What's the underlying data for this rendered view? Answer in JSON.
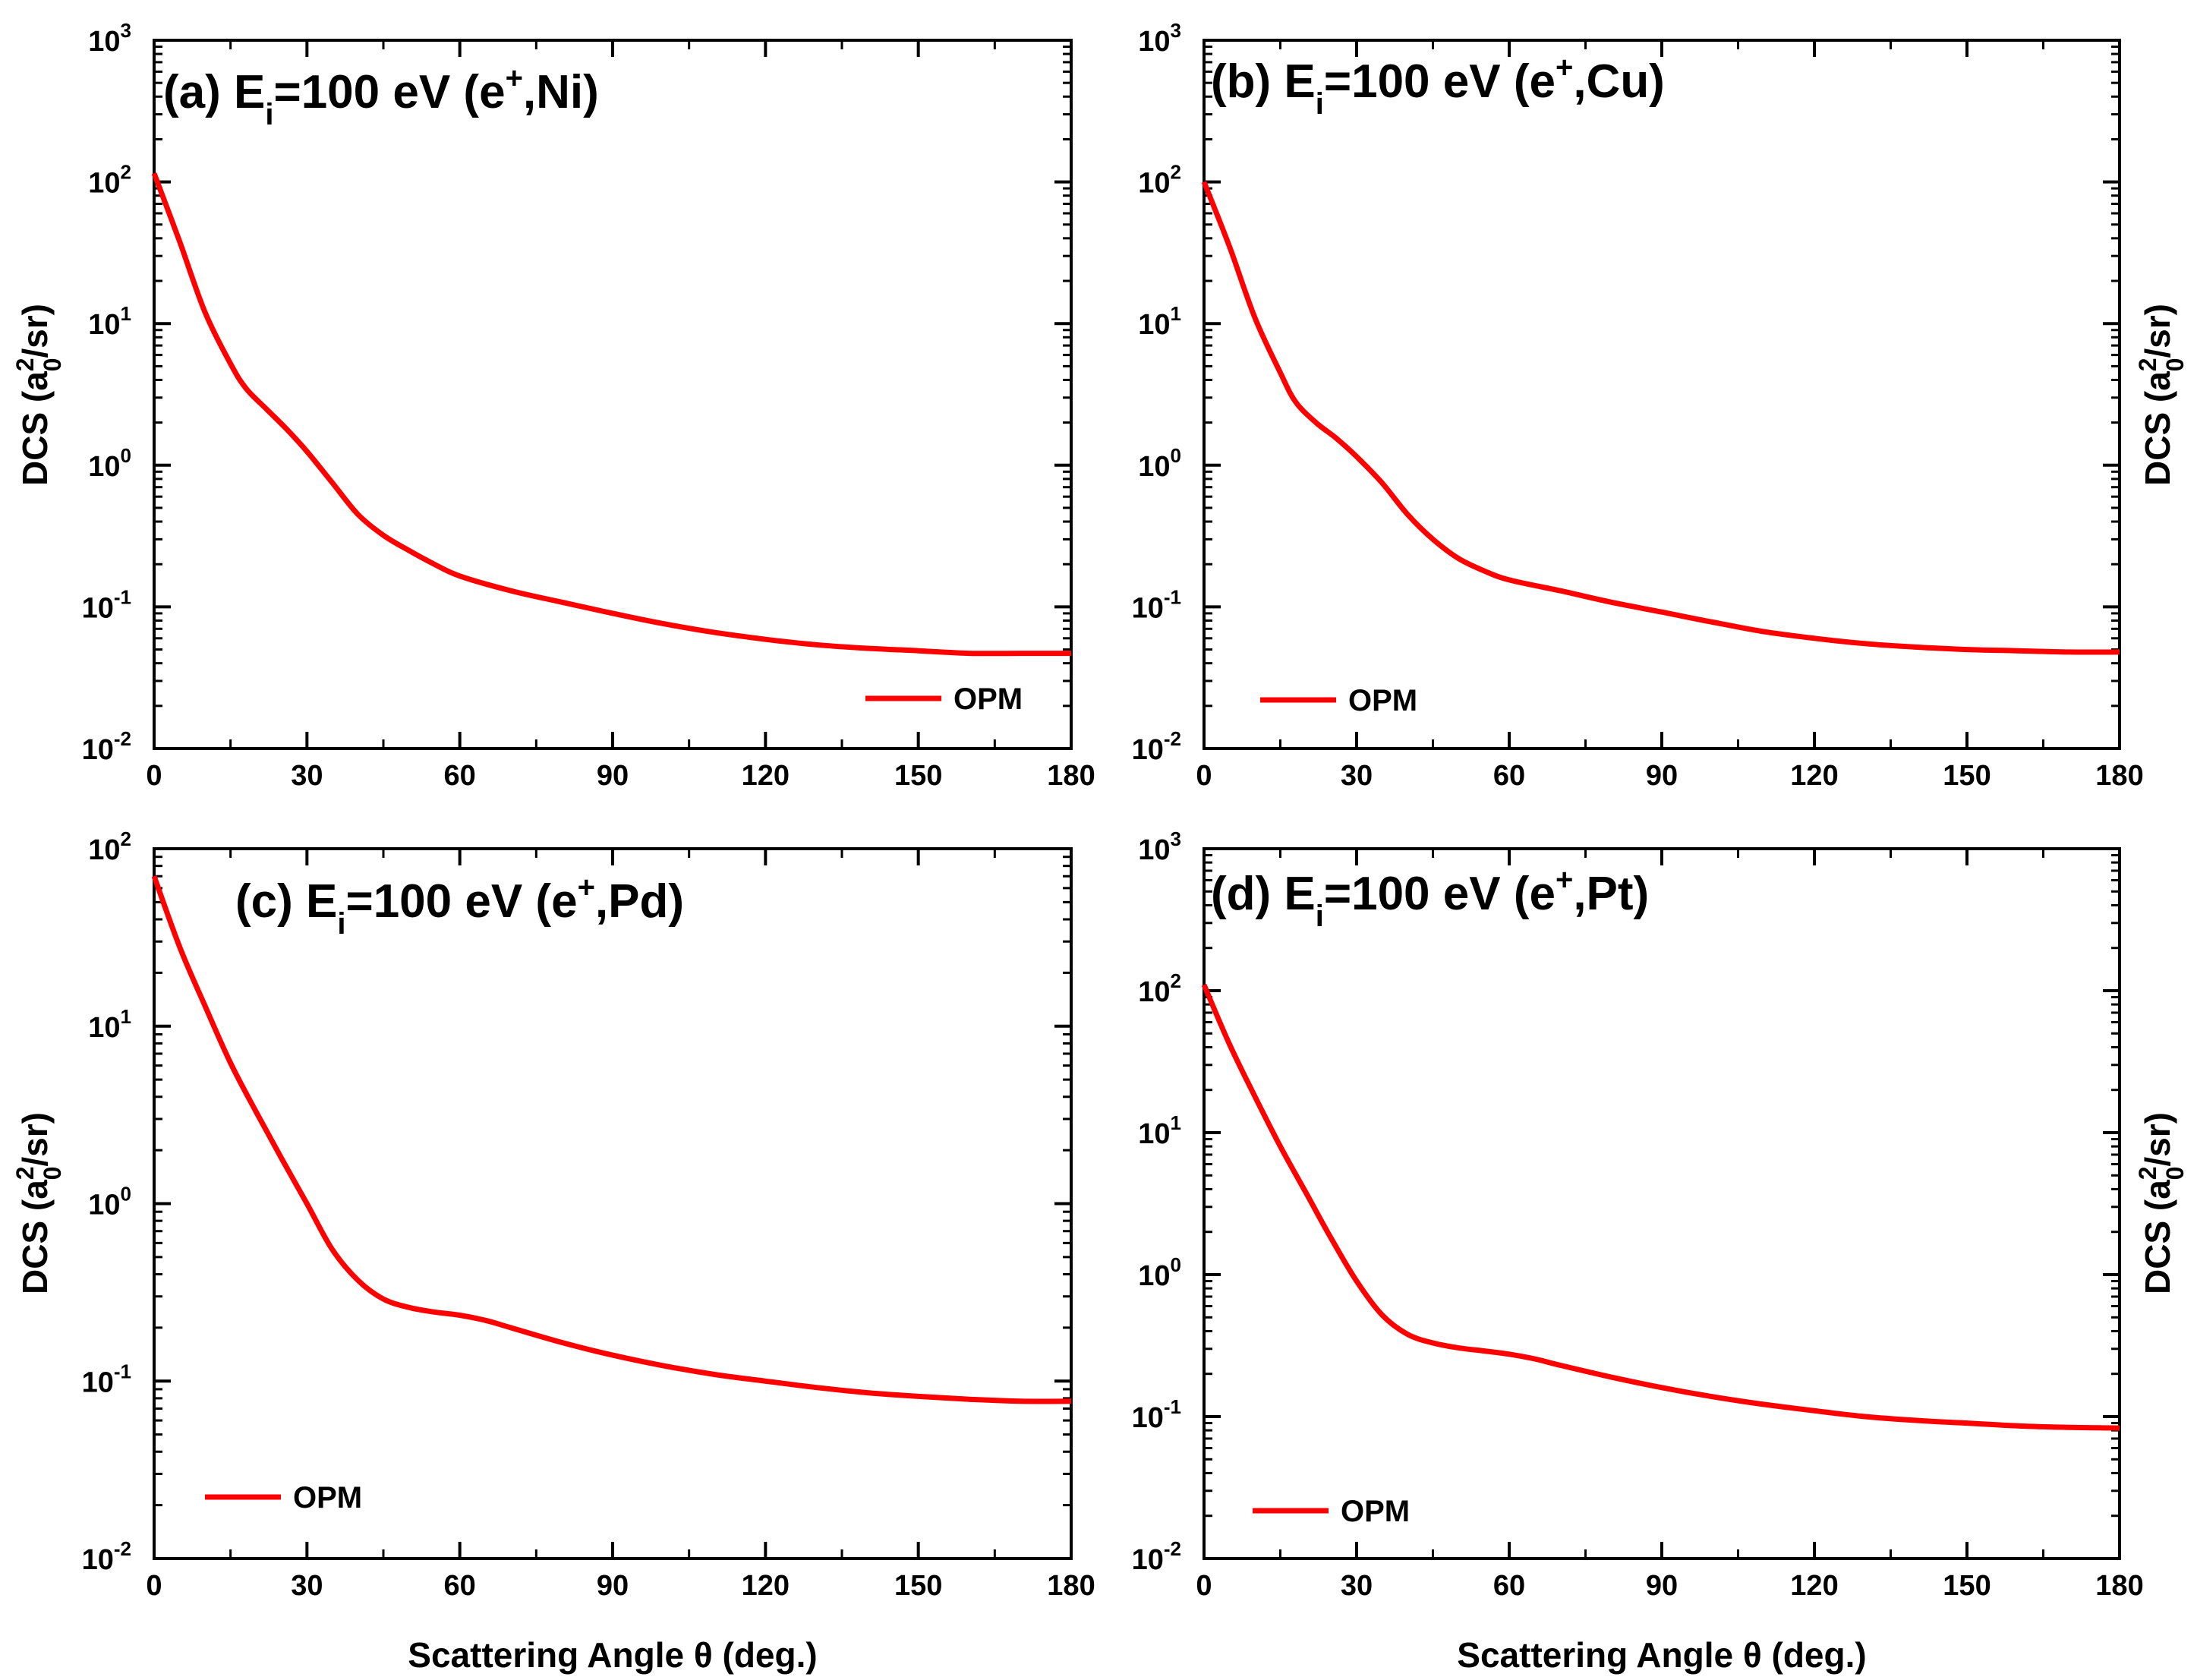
{
  "figure": {
    "x_axis_title": "Scattering Angle θ (deg.)",
    "y_axis_title": {
      "prefix": "DCS (a",
      "sup": "2",
      "sub": "0",
      "suffix": "/sr)"
    },
    "line_color": "#ff0000"
  },
  "chart_data": [
    {
      "type": "line",
      "panel": "a",
      "title": {
        "prefix": "(a) E",
        "sub": "i",
        "mid": "=100 eV (e",
        "sup": "+",
        "suffix": ",Ni)"
      },
      "xlabel": "",
      "ylabel": "DCS (a0^2/sr)",
      "yscale": "log",
      "xlim": [
        0,
        180
      ],
      "ylim_exp": [
        -2,
        3
      ],
      "x_ticks": [
        "0",
        "30",
        "60",
        "90",
        "120",
        "150",
        "180"
      ],
      "y_ticks": [
        {
          "base": "10",
          "exp": "-2"
        },
        {
          "base": "10",
          "exp": "-1"
        },
        {
          "base": "10",
          "exp": "0"
        },
        {
          "base": "10",
          "exp": "1"
        },
        {
          "base": "10",
          "exp": "2"
        },
        {
          "base": "10",
          "exp": "3"
        }
      ],
      "legend": {
        "label": "OPM",
        "position": "bottom-right"
      },
      "series": [
        {
          "name": "OPM",
          "x": [
            0,
            5,
            10,
            15,
            18,
            22,
            26,
            30,
            35,
            40,
            45,
            50,
            55,
            60,
            70,
            80,
            90,
            100,
            110,
            120,
            130,
            140,
            150,
            160,
            170,
            180
          ],
          "y": [
            115,
            38,
            12,
            5.2,
            3.5,
            2.5,
            1.8,
            1.25,
            0.75,
            0.45,
            0.32,
            0.25,
            0.2,
            0.165,
            0.13,
            0.108,
            0.09,
            0.076,
            0.066,
            0.059,
            0.054,
            0.051,
            0.049,
            0.047,
            0.047,
            0.047
          ]
        }
      ]
    },
    {
      "type": "line",
      "panel": "b",
      "title": {
        "prefix": "(b) E",
        "sub": "i",
        "mid": "=100 eV (e",
        "sup": "+",
        "suffix": ",Cu)"
      },
      "xlabel": "",
      "ylabel": "DCS (a0^2/sr)",
      "yscale": "log",
      "xlim": [
        0,
        180
      ],
      "ylim_exp": [
        -2,
        3
      ],
      "x_ticks": [
        "0",
        "30",
        "60",
        "90",
        "120",
        "150",
        "180"
      ],
      "y_ticks": [
        {
          "base": "10",
          "exp": "-2"
        },
        {
          "base": "10",
          "exp": "-1"
        },
        {
          "base": "10",
          "exp": "0"
        },
        {
          "base": "10",
          "exp": "1"
        },
        {
          "base": "10",
          "exp": "2"
        },
        {
          "base": "10",
          "exp": "3"
        }
      ],
      "legend": {
        "label": "OPM",
        "position": "bottom-left"
      },
      "series": [
        {
          "name": "OPM",
          "x": [
            0,
            5,
            10,
            15,
            18,
            22,
            26,
            30,
            35,
            40,
            45,
            50,
            55,
            60,
            70,
            80,
            90,
            100,
            110,
            120,
            130,
            140,
            150,
            160,
            170,
            180
          ],
          "y": [
            100,
            35,
            11,
            4.5,
            2.8,
            2.0,
            1.55,
            1.15,
            0.75,
            0.45,
            0.3,
            0.22,
            0.18,
            0.155,
            0.13,
            0.108,
            0.092,
            0.078,
            0.067,
            0.06,
            0.055,
            0.052,
            0.05,
            0.049,
            0.048,
            0.048
          ]
        }
      ]
    },
    {
      "type": "line",
      "panel": "c",
      "title": {
        "prefix": "(c) E",
        "sub": "i",
        "mid": "=100 eV (e",
        "sup": "+",
        "suffix": ",Pd)"
      },
      "xlabel": "Scattering Angle θ (deg.)",
      "ylabel": "DCS (a0^2/sr)",
      "yscale": "log",
      "xlim": [
        0,
        180
      ],
      "ylim_exp": [
        -2,
        2
      ],
      "x_ticks": [
        "0",
        "30",
        "60",
        "90",
        "120",
        "150",
        "180"
      ],
      "y_ticks": [
        {
          "base": "10",
          "exp": "-2"
        },
        {
          "base": "10",
          "exp": "-1"
        },
        {
          "base": "10",
          "exp": "0"
        },
        {
          "base": "10",
          "exp": "1"
        },
        {
          "base": "10",
          "exp": "2"
        }
      ],
      "legend": {
        "label": "OPM",
        "position": "bottom-left"
      },
      "series": [
        {
          "name": "OPM",
          "x": [
            0,
            5,
            10,
            15,
            20,
            25,
            30,
            35,
            40,
            45,
            50,
            55,
            60,
            65,
            70,
            80,
            90,
            100,
            110,
            120,
            130,
            140,
            150,
            160,
            170,
            180
          ],
          "y": [
            70,
            28,
            13,
            6.2,
            3.3,
            1.8,
            1.0,
            0.55,
            0.37,
            0.29,
            0.26,
            0.245,
            0.235,
            0.22,
            0.2,
            0.165,
            0.14,
            0.122,
            0.109,
            0.1,
            0.092,
            0.086,
            0.082,
            0.079,
            0.077,
            0.077
          ]
        }
      ]
    },
    {
      "type": "line",
      "panel": "d",
      "title": {
        "prefix": "(d) E",
        "sub": "i",
        "mid": "=100 eV (e",
        "sup": "+",
        "suffix": ",Pt)"
      },
      "xlabel": "Scattering Angle θ (deg.)",
      "ylabel": "DCS (a0^2/sr)",
      "yscale": "log",
      "xlim": [
        0,
        180
      ],
      "ylim_exp": [
        -2,
        3
      ],
      "x_ticks": [
        "0",
        "30",
        "60",
        "90",
        "120",
        "150",
        "180"
      ],
      "y_ticks": [
        {
          "base": "10",
          "exp": "-2"
        },
        {
          "base": "10",
          "exp": "-1"
        },
        {
          "base": "10",
          "exp": "0"
        },
        {
          "base": "10",
          "exp": "1"
        },
        {
          "base": "10",
          "exp": "2"
        },
        {
          "base": "10",
          "exp": "3"
        }
      ],
      "legend": {
        "label": "OPM",
        "position": "bottom-left"
      },
      "series": [
        {
          "name": "OPM",
          "x": [
            0,
            5,
            10,
            15,
            20,
            25,
            30,
            35,
            40,
            45,
            50,
            55,
            60,
            65,
            70,
            80,
            90,
            100,
            110,
            120,
            130,
            140,
            150,
            160,
            170,
            180
          ],
          "y": [
            110,
            42,
            18,
            8.0,
            3.8,
            1.8,
            0.9,
            0.52,
            0.38,
            0.33,
            0.305,
            0.29,
            0.275,
            0.255,
            0.23,
            0.19,
            0.16,
            0.138,
            0.122,
            0.11,
            0.1,
            0.094,
            0.09,
            0.086,
            0.084,
            0.083
          ]
        }
      ]
    }
  ]
}
